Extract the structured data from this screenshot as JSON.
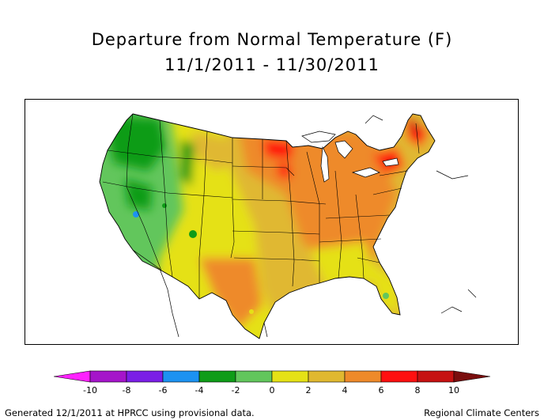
{
  "title": "Departure from Normal Temperature (F)",
  "subtitle": "11/1/2011 - 11/30/2011",
  "legend": {
    "ticks": [
      "-10",
      "-8",
      "-6",
      "-4",
      "-2",
      "0",
      "2",
      "4",
      "6",
      "8",
      "10"
    ],
    "colors": [
      "#ff22ff",
      "#a515ca",
      "#7b1fe6",
      "#1d92f1",
      "#0f9c18",
      "#62c65c",
      "#e5e116",
      "#e0b830",
      "#ee8a2a",
      "#ff1010",
      "#c61212",
      "#7a0e0e"
    ]
  },
  "footer_left": "Generated 12/1/2011 at HPRCC using provisional data.",
  "footer_right": "Regional Climate Centers",
  "colors": {
    "border": "#000000",
    "lines": "#000000"
  }
}
